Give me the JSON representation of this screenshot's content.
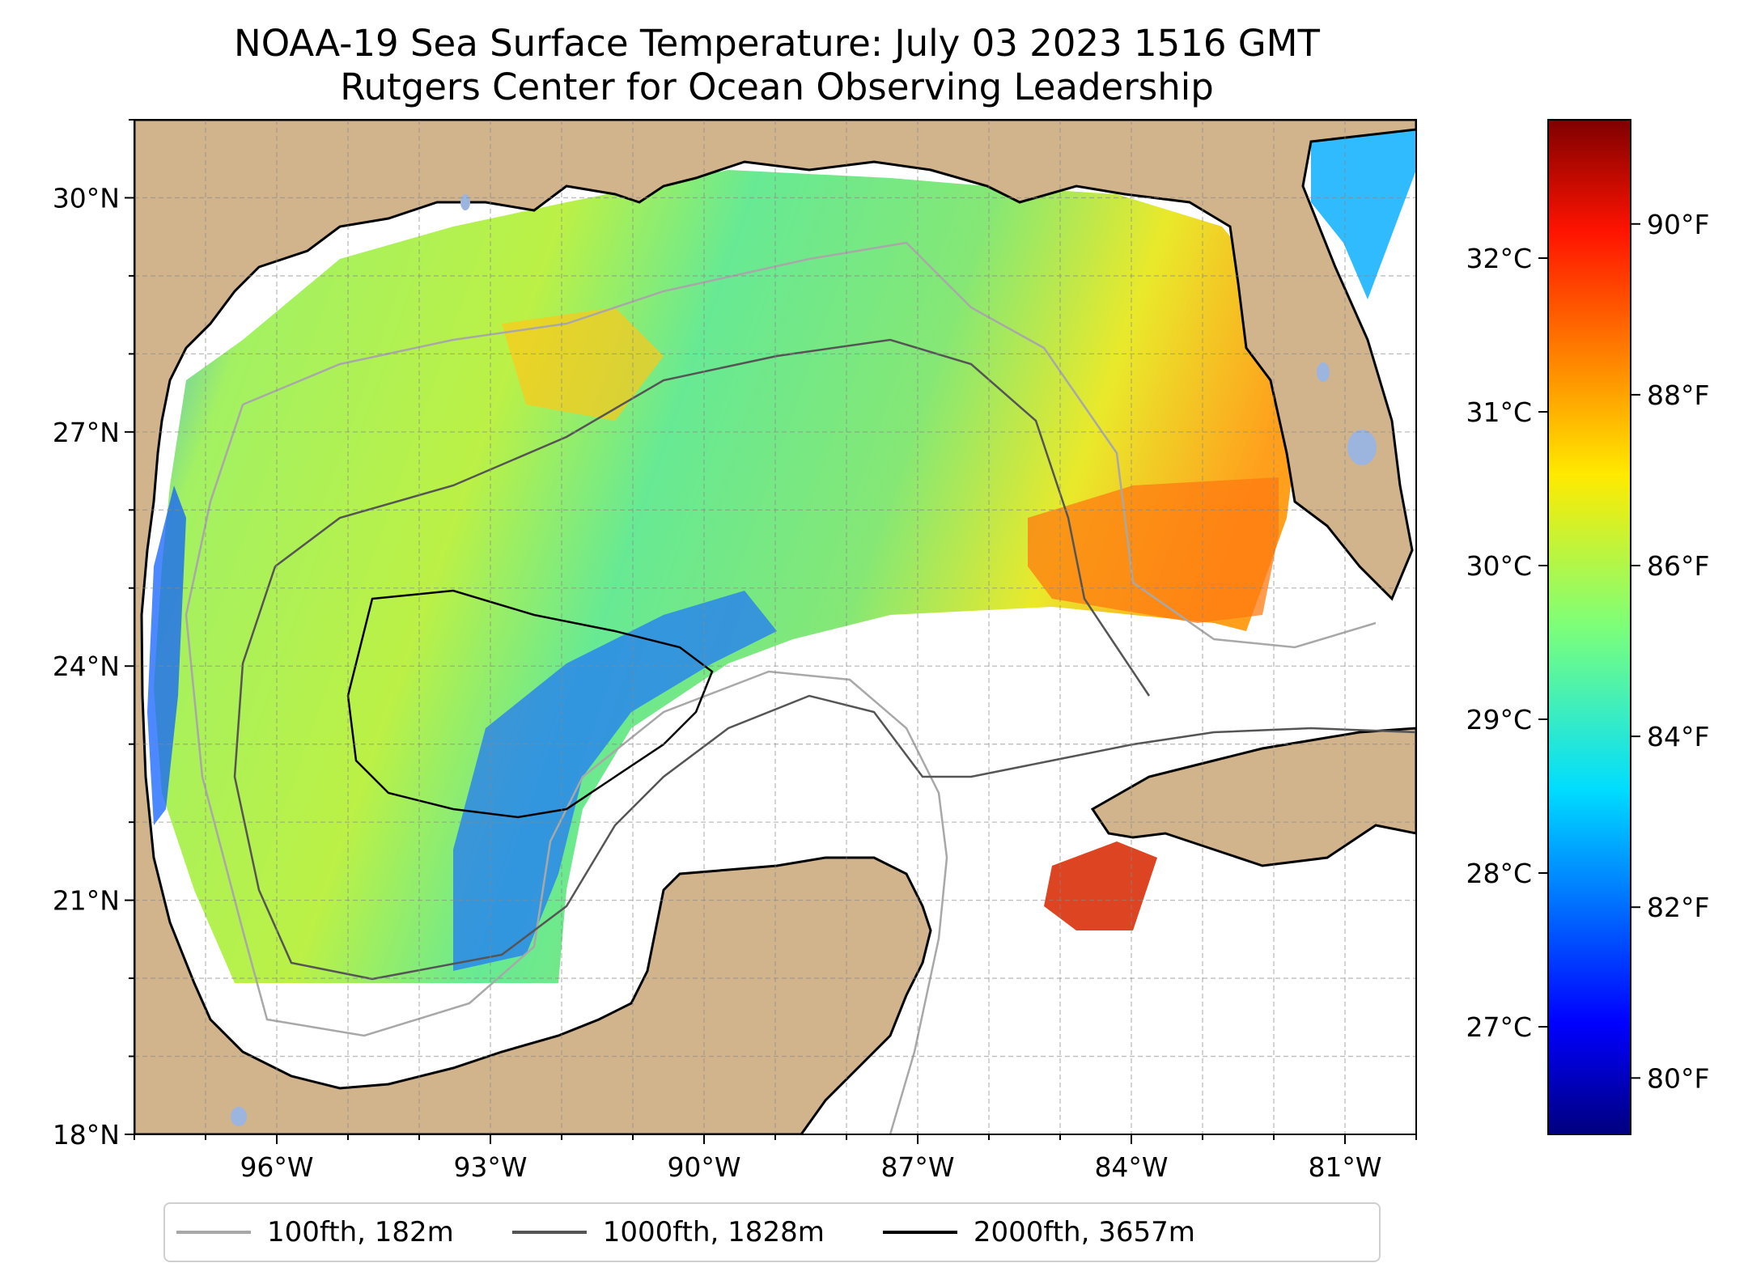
{
  "title": {
    "line1": "NOAA-19 Sea Surface Temperature: July 03 2023 1516 GMT",
    "line2": "Rutgers Center for Ocean Observing Leadership"
  },
  "map": {
    "lon_range": [
      -98,
      -80
    ],
    "lat_range": [
      18,
      31
    ],
    "lon_ticks": [
      {
        "value": -96,
        "label": "96°W"
      },
      {
        "value": -93,
        "label": "93°W"
      },
      {
        "value": -90,
        "label": "90°W"
      },
      {
        "value": -87,
        "label": "87°W"
      },
      {
        "value": -84,
        "label": "84°W"
      },
      {
        "value": -81,
        "label": "81°W"
      }
    ],
    "lat_ticks": [
      {
        "value": 18,
        "label": "18°N"
      },
      {
        "value": 21,
        "label": "21°N"
      },
      {
        "value": 24,
        "label": "24°N"
      },
      {
        "value": 27,
        "label": "27°N"
      },
      {
        "value": 30,
        "label": "30°N"
      }
    ],
    "gridlines": true,
    "colors": {
      "land": "#d2b48c",
      "coast": "#000000",
      "no_data": "#ffffff",
      "lakes": "#9cb5de"
    }
  },
  "colorbar": {
    "colormap": "jet",
    "celsius_range": [
      26.3,
      32.9
    ],
    "celsius_ticks": [
      {
        "value": 27,
        "label": "27°C"
      },
      {
        "value": 28,
        "label": "28°C"
      },
      {
        "value": 29,
        "label": "29°C"
      },
      {
        "value": 30,
        "label": "30°C"
      },
      {
        "value": 31,
        "label": "31°C"
      },
      {
        "value": 32,
        "label": "32°C"
      }
    ],
    "fahrenheit_ticks": [
      {
        "value": 80,
        "label": "80°F"
      },
      {
        "value": 82,
        "label": "82°F"
      },
      {
        "value": 84,
        "label": "84°F"
      },
      {
        "value": 86,
        "label": "86°F"
      },
      {
        "value": 88,
        "label": "88°F"
      },
      {
        "value": 90,
        "label": "90°F"
      }
    ]
  },
  "legend": {
    "placement": "bottom-center",
    "items": [
      {
        "label": "100fth, 182m",
        "color": "#a8a8a8"
      },
      {
        "label": "1000fth, 1828m",
        "color": "#555555"
      },
      {
        "label": "2000fth, 3657m",
        "color": "#000000"
      }
    ]
  }
}
